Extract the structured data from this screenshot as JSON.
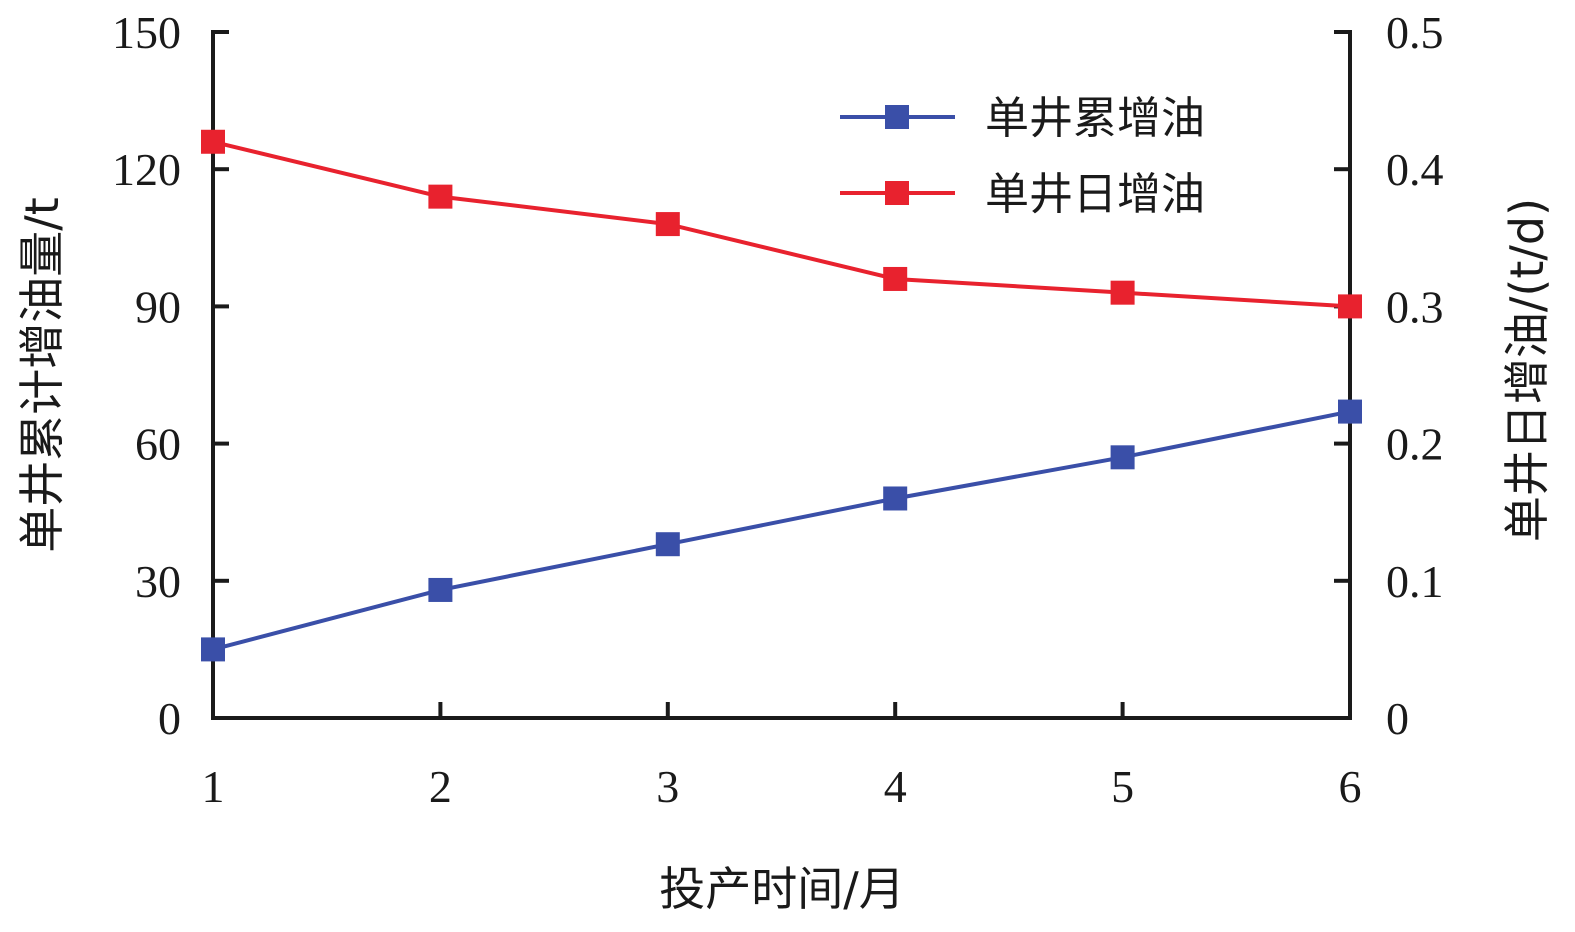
{
  "chart_data": {
    "type": "line",
    "x": [
      1,
      2,
      3,
      4,
      5,
      6
    ],
    "x_ticks": [
      "1",
      "2",
      "3",
      "4",
      "5",
      "6"
    ],
    "xlabel": "投产时间/月",
    "ylabel_left": "单井累计增油量/t",
    "ylabel_right": "单井日增油/(t/d)",
    "ylim_left": [
      0,
      150
    ],
    "ylim_right": [
      0,
      0.5
    ],
    "y_ticks_left": [
      "0",
      "30",
      "60",
      "90",
      "120",
      "150"
    ],
    "y_ticks_right": [
      "0",
      "0.1",
      "0.2",
      "0.3",
      "0.4",
      "0.5"
    ],
    "grid": false,
    "legend_position": "top-right",
    "series": [
      {
        "name": "单井累增油",
        "axis": "left",
        "color": "#3a4fa8",
        "marker": "square",
        "values": [
          15,
          28,
          38,
          48,
          57,
          67
        ]
      },
      {
        "name": "单井日增油",
        "axis": "right",
        "color": "#e8222e",
        "marker": "square",
        "values": [
          0.42,
          0.38,
          0.36,
          0.32,
          0.31,
          0.3
        ]
      }
    ]
  }
}
